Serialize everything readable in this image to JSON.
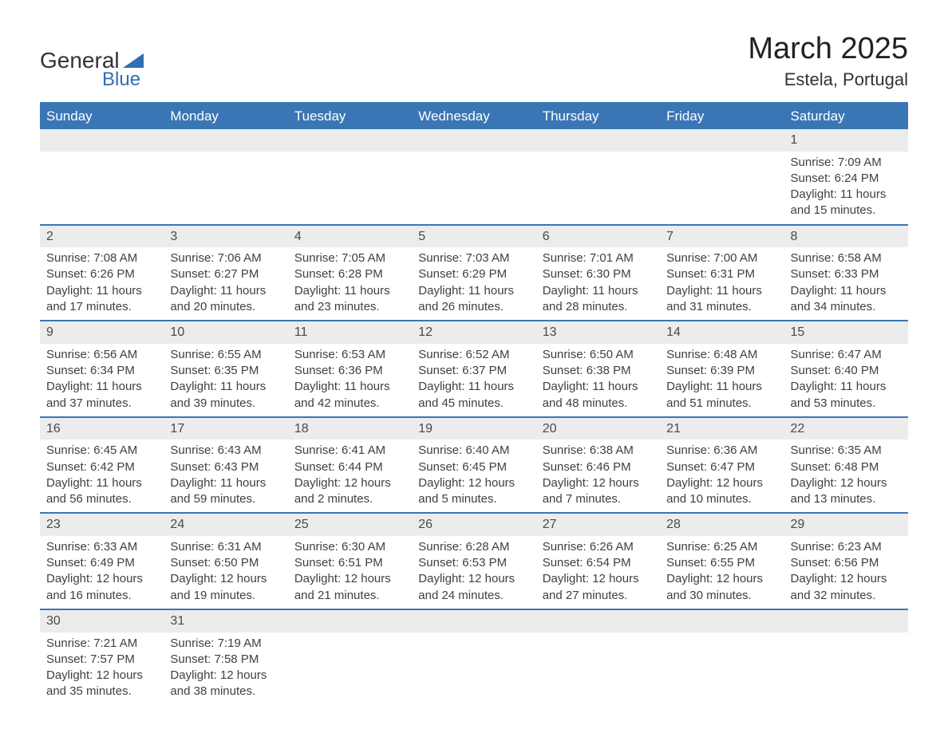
{
  "logo": {
    "word1": "General",
    "word2": "Blue"
  },
  "title": "March 2025",
  "location": "Estela, Portugal",
  "colors": {
    "header_bg": "#3a76b5",
    "header_text": "#ffffff",
    "daynum_bg": "#ececec",
    "row_border": "#3a76b5",
    "body_text": "#404040",
    "accent": "#2f6fb0"
  },
  "typography": {
    "title_fontsize_pt": 29,
    "location_fontsize_pt": 17,
    "header_fontsize_pt": 13,
    "cell_fontsize_pt": 11.5,
    "logo_fontsize_pt": 21
  },
  "layout": {
    "columns": 7,
    "rows": 6,
    "start_day_index": 6
  },
  "weekdays": [
    "Sunday",
    "Monday",
    "Tuesday",
    "Wednesday",
    "Thursday",
    "Friday",
    "Saturday"
  ],
  "days": [
    {
      "n": 1,
      "sunrise": "7:09 AM",
      "sunset": "6:24 PM",
      "daylight": "11 hours and 15 minutes."
    },
    {
      "n": 2,
      "sunrise": "7:08 AM",
      "sunset": "6:26 PM",
      "daylight": "11 hours and 17 minutes."
    },
    {
      "n": 3,
      "sunrise": "7:06 AM",
      "sunset": "6:27 PM",
      "daylight": "11 hours and 20 minutes."
    },
    {
      "n": 4,
      "sunrise": "7:05 AM",
      "sunset": "6:28 PM",
      "daylight": "11 hours and 23 minutes."
    },
    {
      "n": 5,
      "sunrise": "7:03 AM",
      "sunset": "6:29 PM",
      "daylight": "11 hours and 26 minutes."
    },
    {
      "n": 6,
      "sunrise": "7:01 AM",
      "sunset": "6:30 PM",
      "daylight": "11 hours and 28 minutes."
    },
    {
      "n": 7,
      "sunrise": "7:00 AM",
      "sunset": "6:31 PM",
      "daylight": "11 hours and 31 minutes."
    },
    {
      "n": 8,
      "sunrise": "6:58 AM",
      "sunset": "6:33 PM",
      "daylight": "11 hours and 34 minutes."
    },
    {
      "n": 9,
      "sunrise": "6:56 AM",
      "sunset": "6:34 PM",
      "daylight": "11 hours and 37 minutes."
    },
    {
      "n": 10,
      "sunrise": "6:55 AM",
      "sunset": "6:35 PM",
      "daylight": "11 hours and 39 minutes."
    },
    {
      "n": 11,
      "sunrise": "6:53 AM",
      "sunset": "6:36 PM",
      "daylight": "11 hours and 42 minutes."
    },
    {
      "n": 12,
      "sunrise": "6:52 AM",
      "sunset": "6:37 PM",
      "daylight": "11 hours and 45 minutes."
    },
    {
      "n": 13,
      "sunrise": "6:50 AM",
      "sunset": "6:38 PM",
      "daylight": "11 hours and 48 minutes."
    },
    {
      "n": 14,
      "sunrise": "6:48 AM",
      "sunset": "6:39 PM",
      "daylight": "11 hours and 51 minutes."
    },
    {
      "n": 15,
      "sunrise": "6:47 AM",
      "sunset": "6:40 PM",
      "daylight": "11 hours and 53 minutes."
    },
    {
      "n": 16,
      "sunrise": "6:45 AM",
      "sunset": "6:42 PM",
      "daylight": "11 hours and 56 minutes."
    },
    {
      "n": 17,
      "sunrise": "6:43 AM",
      "sunset": "6:43 PM",
      "daylight": "11 hours and 59 minutes."
    },
    {
      "n": 18,
      "sunrise": "6:41 AM",
      "sunset": "6:44 PM",
      "daylight": "12 hours and 2 minutes."
    },
    {
      "n": 19,
      "sunrise": "6:40 AM",
      "sunset": "6:45 PM",
      "daylight": "12 hours and 5 minutes."
    },
    {
      "n": 20,
      "sunrise": "6:38 AM",
      "sunset": "6:46 PM",
      "daylight": "12 hours and 7 minutes."
    },
    {
      "n": 21,
      "sunrise": "6:36 AM",
      "sunset": "6:47 PM",
      "daylight": "12 hours and 10 minutes."
    },
    {
      "n": 22,
      "sunrise": "6:35 AM",
      "sunset": "6:48 PM",
      "daylight": "12 hours and 13 minutes."
    },
    {
      "n": 23,
      "sunrise": "6:33 AM",
      "sunset": "6:49 PM",
      "daylight": "12 hours and 16 minutes."
    },
    {
      "n": 24,
      "sunrise": "6:31 AM",
      "sunset": "6:50 PM",
      "daylight": "12 hours and 19 minutes."
    },
    {
      "n": 25,
      "sunrise": "6:30 AM",
      "sunset": "6:51 PM",
      "daylight": "12 hours and 21 minutes."
    },
    {
      "n": 26,
      "sunrise": "6:28 AM",
      "sunset": "6:53 PM",
      "daylight": "12 hours and 24 minutes."
    },
    {
      "n": 27,
      "sunrise": "6:26 AM",
      "sunset": "6:54 PM",
      "daylight": "12 hours and 27 minutes."
    },
    {
      "n": 28,
      "sunrise": "6:25 AM",
      "sunset": "6:55 PM",
      "daylight": "12 hours and 30 minutes."
    },
    {
      "n": 29,
      "sunrise": "6:23 AM",
      "sunset": "6:56 PM",
      "daylight": "12 hours and 32 minutes."
    },
    {
      "n": 30,
      "sunrise": "7:21 AM",
      "sunset": "7:57 PM",
      "daylight": "12 hours and 35 minutes."
    },
    {
      "n": 31,
      "sunrise": "7:19 AM",
      "sunset": "7:58 PM",
      "daylight": "12 hours and 38 minutes."
    }
  ],
  "labels": {
    "sunrise": "Sunrise: ",
    "sunset": "Sunset: ",
    "daylight": "Daylight: "
  }
}
